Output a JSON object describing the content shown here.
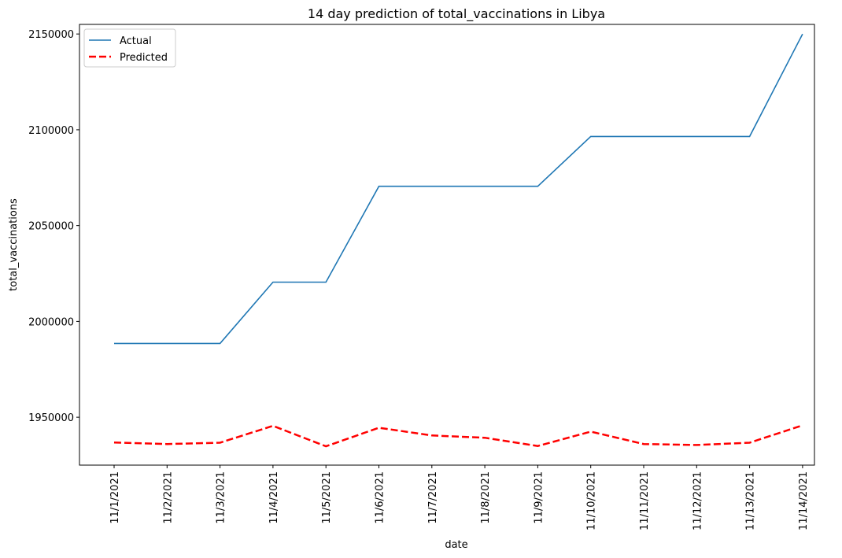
{
  "chart_data": {
    "type": "line",
    "title": "14 day prediction of total_vaccinations in Libya",
    "xlabel": "date",
    "ylabel": "total_vaccinations",
    "categories": [
      "11/1/2021",
      "11/2/2021",
      "11/3/2021",
      "11/4/2021",
      "11/5/2021",
      "11/6/2021",
      "11/7/2021",
      "11/8/2021",
      "11/9/2021",
      "11/10/2021",
      "11/11/2021",
      "11/12/2021",
      "11/13/2021",
      "11/14/2021"
    ],
    "ylim": [
      1925000,
      2155000
    ],
    "yticks": [
      1950000,
      2000000,
      2050000,
      2100000,
      2150000
    ],
    "grid": false,
    "legend_position": "top-left",
    "series": [
      {
        "name": "Actual",
        "color": "#1f77b4",
        "style": "solid",
        "values": [
          1988500,
          1988500,
          1988500,
          2020500,
          2020500,
          2070500,
          2070500,
          2070500,
          2070500,
          2096500,
          2096500,
          2096500,
          2096500,
          2150000
        ]
      },
      {
        "name": "Predicted",
        "color": "#ff0000",
        "style": "dashed",
        "values": [
          1936800,
          1936000,
          1936700,
          1945500,
          1934800,
          1944500,
          1940500,
          1939300,
          1935000,
          1942500,
          1936000,
          1935500,
          1936700,
          1945800
        ]
      }
    ]
  }
}
